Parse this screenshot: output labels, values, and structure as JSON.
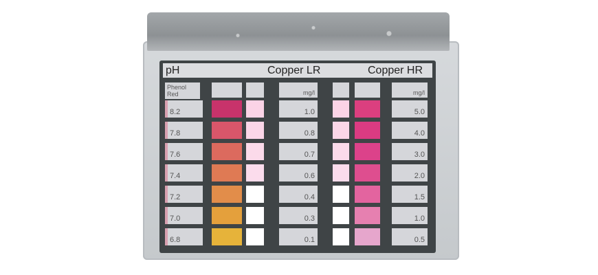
{
  "header": {
    "ph": "pH",
    "copper_lr": "Copper LR",
    "copper_hr": "Copper HR"
  },
  "ph_indicator": "Phenol Red",
  "unit_lr": "mg/l",
  "unit_hr": "mg/l",
  "rows": [
    {
      "ph": "8.2",
      "ph_color": "#c8336b",
      "lr": "1.0",
      "lr_color": "#fbd3e6",
      "hr": "5.0",
      "hr_color": "#db3f7f"
    },
    {
      "ph": "7.8",
      "ph_color": "#d9566a",
      "lr": "0.8",
      "lr_color": "#fbd6e8",
      "hr": "4.0",
      "hr_color": "#db3b82"
    },
    {
      "ph": "7.6",
      "ph_color": "#dc6a5e",
      "lr": "0.7",
      "lr_color": "#fbdaea",
      "hr": "3.0",
      "hr_color": "#dc428a"
    },
    {
      "ph": "7.4",
      "ph_color": "#df7a54",
      "lr": "0.6",
      "lr_color": "#fbdcec",
      "hr": "2.0",
      "hr_color": "#de4e8f"
    },
    {
      "ph": "7.2",
      "ph_color": "#e28d4a",
      "lr": "0.4",
      "lr_color": "#ffffff",
      "hr": "1.5",
      "hr_color": "#e3649f"
    },
    {
      "ph": "7.0",
      "ph_color": "#e4a03c",
      "lr": "0.3",
      "lr_color": "#ffffff",
      "hr": "1.0",
      "hr_color": "#e680b0"
    },
    {
      "ph": "6.8",
      "ph_color": "#e6b33a",
      "lr": "0.1",
      "lr_color": "#ffffff",
      "hr": "0.5",
      "hr_color": "#e6a6cc"
    }
  ]
}
